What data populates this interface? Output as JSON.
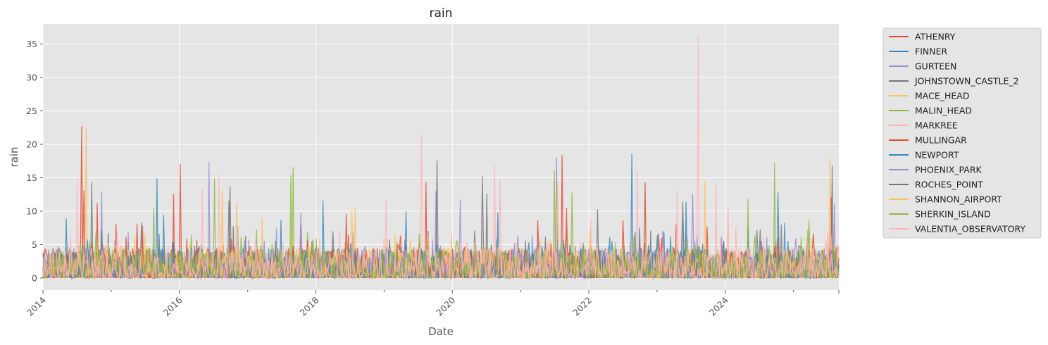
{
  "chart_data": {
    "type": "line",
    "title": "rain",
    "xlabel": "Date",
    "ylabel": "rain",
    "x_range": [
      "2014-01-01",
      "2025-08-31"
    ],
    "ylim": [
      -1.8,
      38
    ],
    "x_ticks": [
      {
        "date": "2014-01-01",
        "label": "2014"
      },
      {
        "date": "2016-01-01",
        "label": "2016"
      },
      {
        "date": "2018-01-01",
        "label": "2018"
      },
      {
        "date": "2020-01-01",
        "label": "2020"
      },
      {
        "date": "2022-01-01",
        "label": "2022"
      },
      {
        "date": "2024-01-01",
        "label": "2024"
      }
    ],
    "x_minor_ticks": [
      "2015-01-01",
      "2017-01-01",
      "2019-01-01",
      "2021-01-01",
      "2023-01-01",
      "2025-01-01"
    ],
    "y_ticks": [
      0,
      5,
      10,
      15,
      20,
      25,
      30,
      35
    ],
    "grid": true,
    "legend_position": "outside-right",
    "series": [
      {
        "name": "ATHENRY",
        "color": "#E24A33",
        "peaks": [
          [
            "2014-07-25",
            22.7
          ],
          [
            "2014-10-20",
            11.2
          ],
          [
            "2016-01-05",
            17.1
          ],
          [
            "2015-12-01",
            12.6
          ],
          [
            "2019-08-15",
            14.4
          ],
          [
            "2021-08-12",
            18.4
          ],
          [
            "2022-10-28",
            14.3
          ],
          [
            "2025-07-20",
            12.1
          ]
        ]
      },
      {
        "name": "FINNER",
        "color": "#348ABD",
        "peaks": [
          [
            "2015-09-01",
            14.9
          ],
          [
            "2018-02-10",
            11.6
          ],
          [
            "2022-08-18",
            18.6
          ],
          [
            "2024-10-10",
            12.8
          ],
          [
            "2020-09-01",
            9.8
          ]
        ]
      },
      {
        "name": "GURTEEN",
        "color": "#988ED5",
        "peaks": [
          [
            "2014-11-10",
            13.0
          ],
          [
            "2016-06-05",
            17.4
          ],
          [
            "2019-10-05",
            13.0
          ],
          [
            "2021-07-10",
            18.1
          ],
          [
            "2025-08-05",
            11.2
          ]
        ]
      },
      {
        "name": "JOHNSTOWN_CASTLE_2",
        "color": "#777777",
        "peaks": [
          [
            "2014-09-20",
            14.3
          ],
          [
            "2016-10-01",
            13.7
          ],
          [
            "2019-10-10",
            17.6
          ],
          [
            "2020-06-12",
            15.2
          ],
          [
            "2022-02-15",
            10.3
          ],
          [
            "2025-07-25",
            16.8
          ]
        ]
      },
      {
        "name": "MACE_HEAD",
        "color": "#FBC15E",
        "peaks": [
          [
            "2014-08-20",
            22.5
          ],
          [
            "2016-08-15",
            13.2
          ],
          [
            "2018-08-01",
            10.5
          ],
          [
            "2023-09-15",
            14.6
          ],
          [
            "2025-07-15",
            18.0
          ]
        ]
      },
      {
        "name": "MALIN_HEAD",
        "color": "#8EBA42",
        "peaks": [
          [
            "2016-07-10",
            14.9
          ],
          [
            "2017-09-01",
            16.6
          ],
          [
            "2021-06-28",
            16.1
          ],
          [
            "2024-09-20",
            17.2
          ],
          [
            "2015-08-15",
            10.4
          ]
        ]
      },
      {
        "name": "MARKREE",
        "color": "#FFB5B8",
        "peaks": [
          [
            "2014-07-01",
            14.7
          ],
          [
            "2016-05-01",
            13.3
          ],
          [
            "2019-07-20",
            21.4
          ],
          [
            "2020-08-15",
            17.0
          ],
          [
            "2022-09-20",
            16.0
          ],
          [
            "2023-08-12",
            36.2
          ],
          [
            "2023-11-10",
            14.1
          ]
        ]
      },
      {
        "name": "MULLINGAR",
        "color": "#E24A33",
        "peaks": [
          [
            "2014-08-10",
            13.1
          ],
          [
            "2018-06-10",
            9.6
          ],
          [
            "2021-09-05",
            10.5
          ]
        ]
      },
      {
        "name": "NEWPORT",
        "color": "#348ABD",
        "peaks": [
          [
            "2015-10-10",
            9.5
          ],
          [
            "2019-05-01",
            10.0
          ],
          [
            "2023-06-05",
            11.4
          ]
        ]
      },
      {
        "name": "PHOENIX_PARK",
        "color": "#988ED5",
        "peaks": [
          [
            "2017-10-15",
            9.8
          ],
          [
            "2020-02-15",
            11.7
          ],
          [
            "2023-07-10",
            12.6
          ]
        ]
      },
      {
        "name": "ROCHES_POINT",
        "color": "#777777",
        "peaks": [
          [
            "2016-09-20",
            11.6
          ],
          [
            "2020-07-01",
            12.6
          ],
          [
            "2023-05-20",
            11.4
          ]
        ]
      },
      {
        "name": "SHANNON_AIRPORT",
        "color": "#FBC15E",
        "peaks": [
          [
            "2016-11-01",
            11.3
          ],
          [
            "2018-07-15",
            10.3
          ],
          [
            "2021-07-20",
            14.5
          ]
        ]
      },
      {
        "name": "SHERKIN_ISLAND",
        "color": "#8EBA42",
        "peaks": [
          [
            "2017-08-20",
            15.4
          ],
          [
            "2021-10-01",
            12.8
          ],
          [
            "2024-05-01",
            11.8
          ]
        ]
      },
      {
        "name": "VALENTIA_OBSERVATORY",
        "color": "#FFB5B8",
        "peaks": [
          [
            "2016-08-01",
            15.5
          ],
          [
            "2019-01-10",
            11.7
          ],
          [
            "2020-09-15",
            14.8
          ],
          [
            "2023-04-20",
            13.3
          ],
          [
            "2024-01-15",
            10.5
          ]
        ]
      }
    ]
  }
}
